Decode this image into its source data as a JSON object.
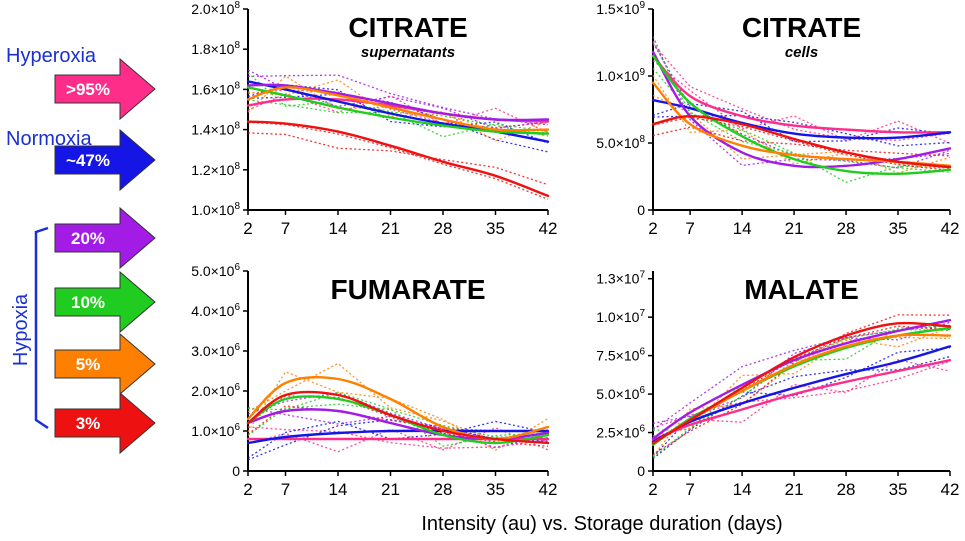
{
  "figure": {
    "x_caption": "Intensity (au) vs. Storage duration (days)",
    "groups": {
      "hyperoxia": "Hyperoxia",
      "normoxia": "Normoxia",
      "hypoxia": "Hypoxia"
    }
  },
  "conditions": [
    {
      "id": "c95",
      "label": ">95%",
      "color": "#ff2d8a",
      "group": "hyperoxia"
    },
    {
      "id": "c47",
      "label": "~47%",
      "color": "#1515e6",
      "group": "normoxia"
    },
    {
      "id": "c20",
      "label": "20%",
      "color": "#a21ce6",
      "group": "hypoxia"
    },
    {
      "id": "c10",
      "label": "10%",
      "color": "#1fcc1f",
      "group": "hypoxia"
    },
    {
      "id": "c5",
      "label": "5%",
      "color": "#ff8000",
      "group": "hypoxia"
    },
    {
      "id": "c3",
      "label": "3%",
      "color": "#ee1111",
      "group": "hypoxia"
    }
  ],
  "chart_data": [
    {
      "type": "line",
      "title": "CITRATE",
      "subtitle": "supernatants",
      "x": [
        2,
        7,
        14,
        21,
        28,
        35,
        42
      ],
      "x_ticks": [
        "2",
        "7",
        "14",
        "21",
        "28",
        "35",
        "42"
      ],
      "ylim": [
        100000000,
        200000000
      ],
      "y_ticks": [
        100000000,
        120000000,
        140000000,
        160000000,
        180000000,
        200000000
      ],
      "y_tick_labels": [
        {
          "m": "1.0×10",
          "e": "8"
        },
        {
          "m": "1.2×10",
          "e": "8"
        },
        {
          "m": "1.4×10",
          "e": "8"
        },
        {
          "m": "1.6×10",
          "e": "8"
        },
        {
          "m": "1.8×10",
          "e": "8"
        },
        {
          "m": "2.0×10",
          "e": "8"
        }
      ],
      "series": [
        {
          "name": ">95%",
          "values": [
            152000000,
            155000000,
            155000000,
            152000000,
            148000000,
            145000000,
            144000000
          ]
        },
        {
          "name": "~47%",
          "values": [
            164000000,
            160000000,
            154000000,
            148000000,
            143000000,
            139000000,
            134000000
          ]
        },
        {
          "name": "20%",
          "values": [
            162000000,
            162000000,
            158000000,
            153000000,
            148000000,
            145000000,
            145000000
          ]
        },
        {
          "name": "10%",
          "values": [
            161000000,
            157000000,
            151000000,
            146000000,
            142000000,
            139000000,
            138000000
          ]
        },
        {
          "name": "5%",
          "values": [
            155000000,
            161000000,
            157000000,
            151000000,
            145000000,
            140000000,
            140000000
          ]
        },
        {
          "name": "3%",
          "values": [
            144000000,
            143000000,
            139000000,
            132000000,
            124000000,
            117000000,
            107000000
          ]
        }
      ]
    },
    {
      "type": "line",
      "title": "CITRATE",
      "subtitle": "cells",
      "x": [
        2,
        7,
        14,
        21,
        28,
        35,
        42
      ],
      "x_ticks": [
        "2",
        "7",
        "14",
        "21",
        "28",
        "35",
        "42"
      ],
      "ylim": [
        0,
        1500000000
      ],
      "y_ticks": [
        0,
        500000000,
        1000000000,
        1500000000
      ],
      "y_tick_labels": [
        {
          "m": "0",
          "e": ""
        },
        {
          "m": "5.0×10",
          "e": "8"
        },
        {
          "m": "1.0×10",
          "e": "9"
        },
        {
          "m": "1.5×10",
          "e": "9"
        }
      ],
      "series": [
        {
          "name": ">95%",
          "values": [
            1150000000,
            850000000,
            700000000,
            630000000,
            600000000,
            580000000,
            580000000
          ]
        },
        {
          "name": "~47%",
          "values": [
            820000000,
            760000000,
            650000000,
            570000000,
            540000000,
            540000000,
            580000000
          ]
        },
        {
          "name": "20%",
          "values": [
            1180000000,
            700000000,
            430000000,
            330000000,
            330000000,
            380000000,
            460000000
          ]
        },
        {
          "name": "10%",
          "values": [
            1150000000,
            800000000,
            550000000,
            380000000,
            290000000,
            270000000,
            300000000
          ]
        },
        {
          "name": "5%",
          "values": [
            950000000,
            640000000,
            480000000,
            410000000,
            380000000,
            360000000,
            330000000
          ]
        },
        {
          "name": "3%",
          "values": [
            640000000,
            700000000,
            640000000,
            530000000,
            430000000,
            360000000,
            320000000
          ]
        }
      ]
    },
    {
      "type": "line",
      "title": "FUMARATE",
      "subtitle": "",
      "x": [
        2,
        7,
        14,
        21,
        28,
        35,
        42
      ],
      "x_ticks": [
        "2",
        "7",
        "14",
        "21",
        "28",
        "35",
        "42"
      ],
      "ylim": [
        0,
        5000000
      ],
      "y_ticks": [
        0,
        1000000,
        2000000,
        3000000,
        4000000,
        5000000
      ],
      "y_tick_labels": [
        {
          "m": "0",
          "e": ""
        },
        {
          "m": "1.0×10",
          "e": "6"
        },
        {
          "m": "2.0×10",
          "e": "6"
        },
        {
          "m": "3.0×10",
          "e": "6"
        },
        {
          "m": "4.0×10",
          "e": "6"
        },
        {
          "m": "5.0×10",
          "e": "6"
        }
      ],
      "series": [
        {
          "name": ">95%",
          "values": [
            800000,
            800000,
            800000,
            800000,
            800000,
            800000,
            800000
          ]
        },
        {
          "name": "~47%",
          "values": [
            700000,
            850000,
            950000,
            1000000,
            1000000,
            1000000,
            1000000
          ]
        },
        {
          "name": "20%",
          "values": [
            1200000,
            1500000,
            1500000,
            1200000,
            900000,
            800000,
            950000
          ]
        },
        {
          "name": "10%",
          "values": [
            1200000,
            1800000,
            1800000,
            1400000,
            900000,
            700000,
            900000
          ]
        },
        {
          "name": "5%",
          "values": [
            1300000,
            2200000,
            2300000,
            1800000,
            1100000,
            800000,
            1100000
          ]
        },
        {
          "name": "3%",
          "values": [
            1200000,
            1900000,
            1900000,
            1400000,
            1000000,
            800000,
            700000
          ]
        }
      ]
    },
    {
      "type": "line",
      "title": "MALATE",
      "subtitle": "",
      "x": [
        2,
        7,
        14,
        21,
        28,
        35,
        42
      ],
      "x_ticks": [
        "2",
        "7",
        "14",
        "21",
        "28",
        "35",
        "42"
      ],
      "ylim": [
        0,
        13000000
      ],
      "y_ticks": [
        0,
        2500000,
        5000000,
        7500000,
        10000000,
        12500000
      ],
      "y_tick_labels": [
        {
          "m": "0",
          "e": ""
        },
        {
          "m": "2.5×10",
          "e": "6"
        },
        {
          "m": "5.0×10",
          "e": "6"
        },
        {
          "m": "7.5×10",
          "e": "6"
        },
        {
          "m": "1.0×10",
          "e": "7"
        },
        {
          "m": "1.3×10",
          "e": "7"
        }
      ],
      "series": [
        {
          "name": ">95%",
          "values": [
            2000000,
            3000000,
            4000000,
            5000000,
            5800000,
            6500000,
            7200000
          ]
        },
        {
          "name": "~47%",
          "values": [
            1900000,
            3200000,
            4400000,
            5400000,
            6300000,
            7100000,
            8100000
          ]
        },
        {
          "name": "20%",
          "values": [
            2100000,
            3800000,
            5600000,
            7200000,
            8300000,
            9100000,
            9800000
          ]
        },
        {
          "name": "10%",
          "values": [
            1700000,
            3400000,
            5200000,
            6800000,
            8000000,
            8800000,
            9300000
          ]
        },
        {
          "name": "5%",
          "values": [
            1800000,
            3300000,
            5200000,
            6900000,
            8100000,
            8800000,
            8800000
          ]
        },
        {
          "name": "3%",
          "values": [
            1800000,
            3300000,
            5400000,
            7400000,
            8800000,
            9600000,
            9400000
          ]
        }
      ]
    }
  ]
}
